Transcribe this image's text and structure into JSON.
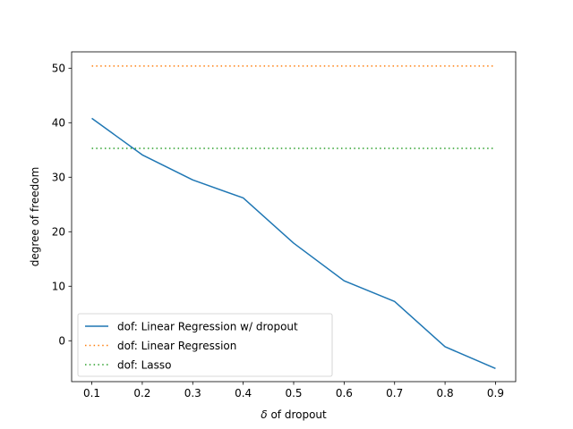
{
  "chart_data": {
    "type": "line",
    "title": "",
    "xlabel_prefix": "δ",
    "xlabel_rest": " of dropout",
    "ylabel": "degree of freedom",
    "xlim": [
      0.06,
      0.94
    ],
    "ylim": [
      -7.5,
      53.0
    ],
    "xticks": [
      0.1,
      0.2,
      0.3,
      0.4,
      0.5,
      0.6,
      0.7,
      0.8,
      0.9
    ],
    "xtick_labels": [
      "0.1",
      "0.2",
      "0.3",
      "0.4",
      "0.5",
      "0.6",
      "0.7",
      "0.8",
      "0.9"
    ],
    "yticks": [
      0,
      10,
      20,
      30,
      40,
      50
    ],
    "ytick_labels": [
      "0",
      "10",
      "20",
      "30",
      "40",
      "50"
    ],
    "grid": false,
    "legend_position": "lower-left",
    "series": [
      {
        "name": "dof: Linear Regression w/ dropout",
        "color": "#1f77b4",
        "style": "solid",
        "x": [
          0.1,
          0.2,
          0.3,
          0.4,
          0.5,
          0.6,
          0.7,
          0.8,
          0.9
        ],
        "y": [
          40.8,
          34.1,
          29.5,
          26.2,
          17.9,
          11.0,
          7.2,
          -1.1,
          -5.1
        ]
      },
      {
        "name": "dof: Linear Regression",
        "color": "#ff7f0e",
        "style": "dotted",
        "x": [
          0.1,
          0.9
        ],
        "y": [
          50.4,
          50.4
        ]
      },
      {
        "name": "dof: Lasso",
        "color": "#2ca02c",
        "style": "dotted",
        "x": [
          0.1,
          0.9
        ],
        "y": [
          35.3,
          35.3
        ]
      }
    ]
  }
}
